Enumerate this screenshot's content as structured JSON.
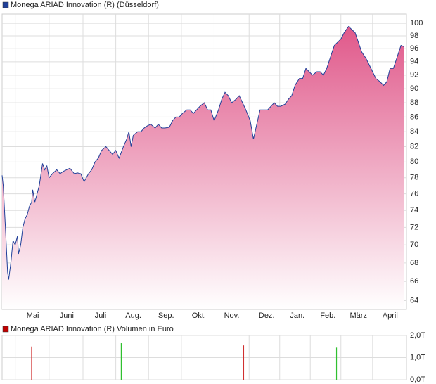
{
  "chart_data": [
    {
      "type": "area",
      "log": true,
      "grid": true,
      "area_color": "#e0588a",
      "series": [
        {
          "name": "Monega ARIAD Innovation (R) (Düsseldorf)",
          "color": "#1f3f99",
          "x": [
            0,
            1,
            3,
            5,
            6,
            8,
            10,
            12,
            14,
            15,
            17,
            19,
            21,
            23,
            25,
            27,
            28,
            30,
            32,
            34,
            37,
            39,
            41,
            43,
            46,
            50,
            53,
            56,
            59,
            62,
            66,
            69,
            72,
            75,
            79,
            82,
            85,
            88,
            91,
            95,
            98,
            101,
            104,
            107,
            111,
            114,
            116,
            118,
            120,
            124,
            127,
            130,
            133,
            136,
            140,
            143,
            146,
            149,
            153,
            156,
            159,
            162,
            165,
            169,
            172,
            175,
            178,
            181,
            185,
            188,
            191,
            194,
            198,
            201,
            204,
            207,
            210,
            214,
            217,
            220,
            223,
            227,
            230,
            233,
            236,
            239,
            243,
            246,
            249,
            252,
            255,
            259,
            262,
            265,
            268,
            272,
            275,
            278,
            281,
            284,
            288,
            291,
            294,
            297,
            301,
            304,
            307,
            310,
            313,
            317,
            320,
            323,
            326,
            329,
            333,
            336,
            339,
            342,
            346,
            349,
            352,
            355,
            358,
            362,
            365,
            368
          ],
          "values": [
            78.3,
            77,
            72,
            67,
            66.2,
            68,
            70.5,
            70,
            71,
            69,
            70,
            72,
            73,
            73.5,
            74.5,
            75,
            76.5,
            75,
            76,
            77,
            79.8,
            79,
            79.5,
            78,
            78.5,
            79,
            78.5,
            78.8,
            79,
            79.2,
            78.5,
            78.6,
            78.5,
            77.5,
            78.5,
            79,
            80,
            80.5,
            81.5,
            82,
            81.5,
            81,
            81.5,
            80.5,
            82,
            83,
            84,
            82,
            83.5,
            84,
            84,
            84.5,
            84.8,
            85,
            84.5,
            85,
            84.5,
            84.5,
            84.6,
            85.5,
            86,
            86,
            86.5,
            87,
            87,
            86.5,
            87,
            87.5,
            88,
            87,
            87,
            85.5,
            87,
            88.5,
            89.5,
            89,
            88,
            88.5,
            89,
            88,
            87,
            85.5,
            83,
            85,
            87,
            87,
            87,
            87.5,
            88,
            87.5,
            87.5,
            87.8,
            88.5,
            89,
            90.5,
            91.5,
            91.5,
            93,
            92.5,
            92,
            92.5,
            92.5,
            92,
            93,
            95,
            96.5,
            97,
            97.5,
            98.5,
            99.5,
            99,
            98.5,
            97,
            95.5,
            94.5,
            93.5,
            92.5,
            91.5,
            91,
            90.5,
            91,
            93,
            93,
            95,
            96.5,
            96.3
          ]
        }
      ],
      "xlim": [
        0,
        370
      ],
      "xticks": [
        {
          "value": 12,
          "label": "Mai"
        },
        {
          "value": 43,
          "label": "Juni"
        },
        {
          "value": 74,
          "label": "Juli"
        },
        {
          "value": 104,
          "label": "Aug."
        },
        {
          "value": 134,
          "label": "Sep."
        },
        {
          "value": 164,
          "label": "Okt."
        },
        {
          "value": 194,
          "label": "Nov."
        },
        {
          "value": 226,
          "label": "Dez."
        },
        {
          "value": 254,
          "label": "Jan."
        },
        {
          "value": 282,
          "label": "Feb."
        },
        {
          "value": 310,
          "label": "März"
        },
        {
          "value": 339,
          "label": "April"
        }
      ],
      "ylim": [
        63.1,
        101.5
      ],
      "yticks": [
        64,
        66,
        68,
        70,
        72,
        74,
        76,
        78,
        80,
        82,
        84,
        86,
        88,
        90,
        92,
        94,
        96,
        98,
        100
      ]
    },
    {
      "type": "bar",
      "grid": true,
      "series": [
        {
          "name": "Monega ARIAD Innovation (R) Volumen in Euro",
          "color": "#c00000",
          "x": [
            27,
            109,
            221,
            306
          ],
          "values": [
            1500,
            1650,
            1550,
            1450
          ],
          "colors": [
            "#d03030",
            "#30c030",
            "#d03030",
            "#30c030"
          ]
        }
      ],
      "xlim": [
        0,
        370
      ],
      "xticks": [
        12,
        43,
        74,
        104,
        134,
        164,
        194,
        226,
        254,
        282,
        310,
        339
      ],
      "ylim": [
        0,
        2000
      ],
      "yticks": [
        {
          "value": 0,
          "label": "0,0T"
        },
        {
          "value": 1000,
          "label": "1,0T"
        },
        {
          "value": 2000,
          "label": "2,0T"
        }
      ]
    }
  ]
}
